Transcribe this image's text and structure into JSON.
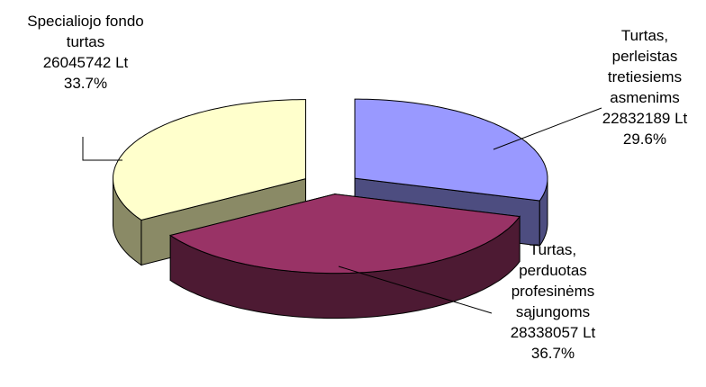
{
  "chart_data": {
    "type": "pie",
    "style": "3d-exploded",
    "slices": [
      {
        "key": "special",
        "label_lines": [
          "Specialiojo fondo",
          "turtas"
        ],
        "amount_text": "26045742 Lt",
        "value": 26045742,
        "percent_text": "33.7%",
        "top_color": "#ffffcc",
        "side_color": "#8a8a66"
      },
      {
        "key": "third",
        "label_lines": [
          "Turtas,",
          "perleistas",
          "tretiesiems",
          "asmenims"
        ],
        "amount_text": "22832189 Lt",
        "value": 22832189,
        "percent_text": "29.6%",
        "top_color": "#9999ff",
        "side_color": "#4d4d80"
      },
      {
        "key": "unions",
        "label_lines": [
          "Turtas,",
          "perduotas",
          "profesinėms",
          "sąjungoms"
        ],
        "amount_text": "28338057 Lt",
        "value": 28338057,
        "percent_text": "36.7%",
        "top_color": "#993366",
        "side_color": "#4d1a33"
      }
    ]
  }
}
